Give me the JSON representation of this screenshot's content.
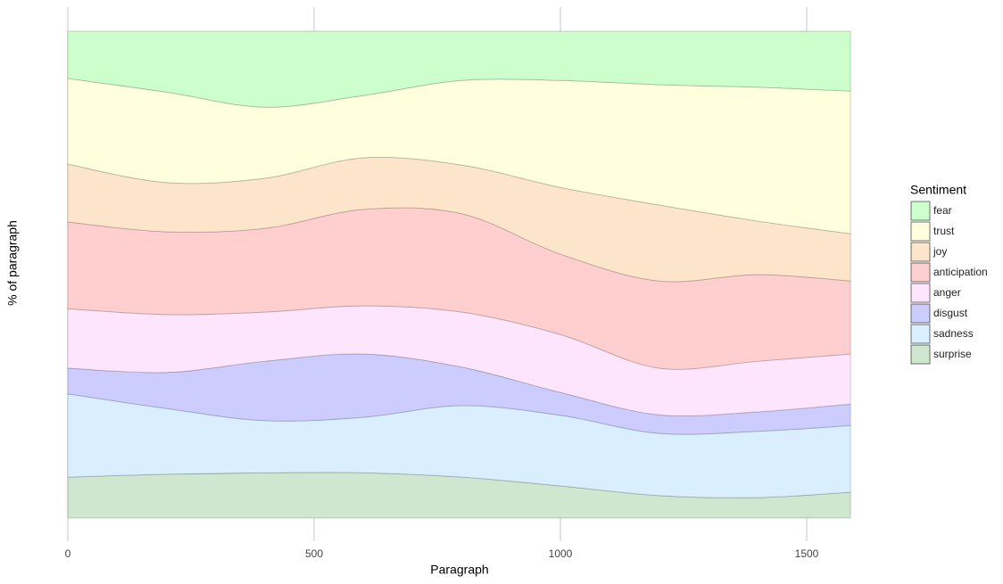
{
  "chart_data": {
    "type": "area",
    "stacked": true,
    "smooth": true,
    "x_label": "Paragraph",
    "y_label": "% of paragraph",
    "legend_title": "Sentiment",
    "x": [
      0,
      200,
      400,
      600,
      800,
      1000,
      1200,
      1400,
      1589
    ],
    "xlim": [
      -50,
      1640
    ],
    "xticks": [
      0,
      500,
      1000,
      1500
    ],
    "ylim": [
      0,
      100
    ],
    "grid": true,
    "legend": "right",
    "series": [
      {
        "name": "surprise",
        "color": "#cfe7cf",
        "values": [
          8.4,
          9.0,
          9.3,
          9.3,
          8.4,
          6.6,
          4.6,
          4.2,
          5.3
        ]
      },
      {
        "name": "sadness",
        "color": "#d9efff",
        "values": [
          17.1,
          13.5,
          10.7,
          11.4,
          14.7,
          14.5,
          12.8,
          13.6,
          13.7
        ]
      },
      {
        "name": "disgust",
        "color": "#ccccff",
        "values": [
          5.3,
          7.4,
          12.2,
          13.0,
          7.9,
          4.7,
          3.8,
          4.0,
          4.4
        ]
      },
      {
        "name": "anger",
        "color": "#fde5fd",
        "values": [
          12.2,
          11.9,
          10.1,
          9.9,
          11.3,
          11.9,
          9.6,
          10.4,
          10.3
        ]
      },
      {
        "name": "anticipation",
        "color": "#ffcfcf",
        "values": [
          17.8,
          17.0,
          17.2,
          19.8,
          20.2,
          16.5,
          17.9,
          17.8,
          15.0
        ]
      },
      {
        "name": "joy",
        "color": "#fde5cc",
        "values": [
          11.9,
          10.1,
          10.3,
          10.6,
          10.0,
          13.7,
          15.6,
          11.0,
          9.7
        ]
      },
      {
        "name": "trust",
        "color": "#ffffdd",
        "values": [
          17.6,
          18.6,
          14.6,
          12.8,
          17.4,
          22.0,
          24.7,
          27.5,
          29.3
        ]
      },
      {
        "name": "fear",
        "color": "#ccffcc",
        "values": [
          9.7,
          12.5,
          15.6,
          13.2,
          10.1,
          10.1,
          11.0,
          11.5,
          12.3
        ]
      }
    ]
  }
}
